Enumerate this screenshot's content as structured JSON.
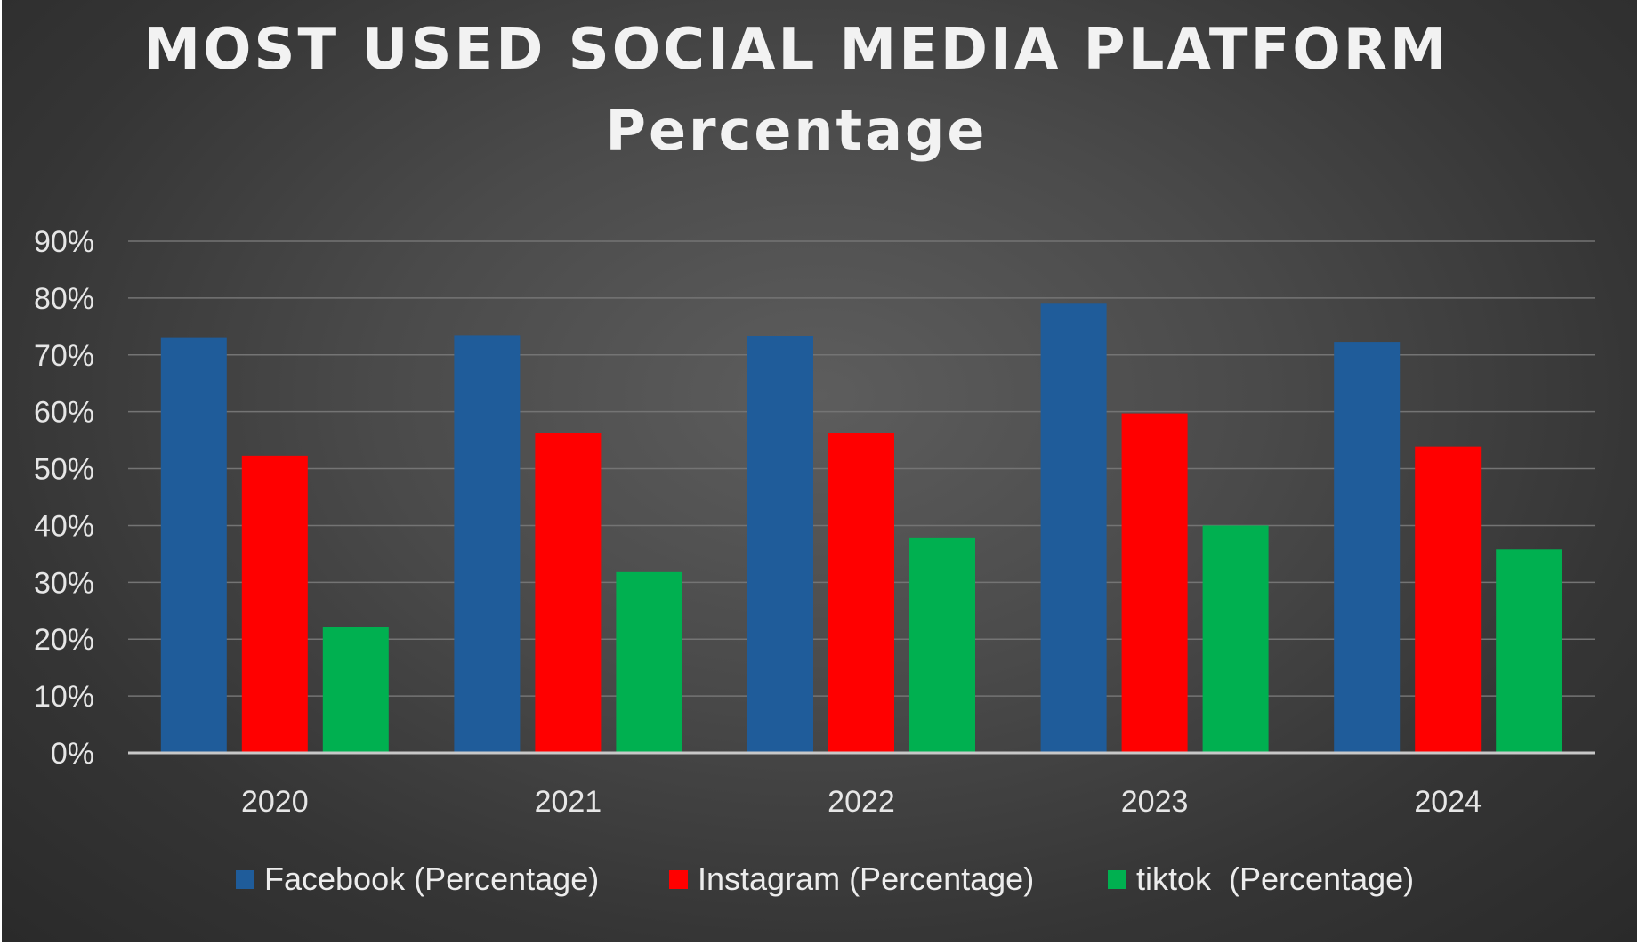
{
  "chart_data": {
    "type": "bar",
    "title": "MOST USED SOCIAL MEDIA PLATFORM",
    "subtitle": "Percentage",
    "xlabel": "",
    "ylabel": "",
    "categories": [
      "2020",
      "2021",
      "2022",
      "2023",
      "2024"
    ],
    "series": [
      {
        "name": "Facebook (Percentage)",
        "color": "#1f5c9a",
        "values": [
          73,
          73.5,
          73.3,
          79,
          72.3
        ]
      },
      {
        "name": "Instagram (Percentage)",
        "color": "#ff0000",
        "values": [
          52.3,
          56.2,
          56.3,
          59.7,
          53.9
        ]
      },
      {
        "name": "tiktok  (Percentage)",
        "color": "#00b050",
        "values": [
          22.2,
          31.8,
          37.9,
          40,
          35.8
        ]
      }
    ],
    "ylim": [
      0,
      90
    ],
    "yticks": [
      0,
      10,
      20,
      30,
      40,
      50,
      60,
      70,
      80,
      90
    ],
    "ytick_labels": [
      "0%",
      "10%",
      "20%",
      "30%",
      "40%",
      "50%",
      "60%",
      "70%",
      "80%",
      "90%"
    ],
    "grid": true,
    "legend_position": "bottom"
  }
}
